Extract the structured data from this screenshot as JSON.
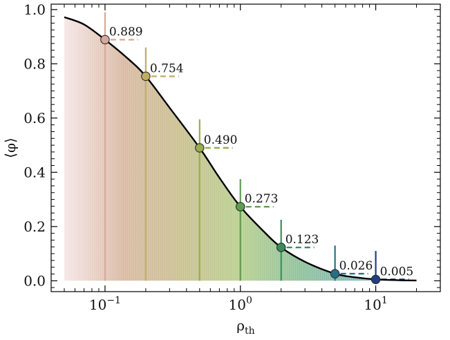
{
  "chart_data": {
    "type": "line",
    "title": "",
    "xlabel": "ρ",
    "xlabel_sub": "th",
    "ylabel": "⟨φ⟩",
    "xscale": "log",
    "xlim": [
      0.04,
      30
    ],
    "ylim": [
      -0.04,
      1.02
    ],
    "grid": false,
    "curve": {
      "x": [
        0.05,
        0.07,
        0.1,
        0.15,
        0.2,
        0.3,
        0.5,
        0.7,
        1.0,
        1.5,
        2.0,
        3.0,
        5.0,
        7.0,
        10.0,
        15.0,
        20.0
      ],
      "y": [
        0.972,
        0.945,
        0.889,
        0.816,
        0.754,
        0.638,
        0.49,
        0.38,
        0.273,
        0.18,
        0.123,
        0.07,
        0.026,
        0.013,
        0.005,
        0.002,
        0.001
      ]
    },
    "points": [
      {
        "x": 0.1,
        "y": 0.889,
        "label": "0.889",
        "color": "#d6a99a"
      },
      {
        "x": 0.2,
        "y": 0.754,
        "label": "0.754",
        "color": "#bfae62"
      },
      {
        "x": 0.5,
        "y": 0.49,
        "label": "0.490",
        "color": "#98ad4d"
      },
      {
        "x": 1.0,
        "y": 0.273,
        "label": "0.273",
        "color": "#5f9c52"
      },
      {
        "x": 2.0,
        "y": 0.123,
        "label": "0.123",
        "color": "#3b8a5c"
      },
      {
        "x": 5.0,
        "y": 0.026,
        "label": "0.026",
        "color": "#2a6e84"
      },
      {
        "x": 10.0,
        "y": 0.005,
        "label": "0.005",
        "color": "#1f3f82"
      }
    ],
    "stem_tops": [
      0.99,
      0.86,
      0.595,
      0.375,
      0.225,
      0.13,
      0.11
    ],
    "x_ticks": [
      {
        "value": 0.1,
        "base": "10",
        "exp": "−1"
      },
      {
        "value": 1,
        "base": "10",
        "exp": "0"
      },
      {
        "value": 10,
        "base": "10",
        "exp": "1"
      }
    ],
    "y_ticks": [
      {
        "value": 0.0,
        "label": "0.0"
      },
      {
        "value": 0.2,
        "label": "0.2"
      },
      {
        "value": 0.4,
        "label": "0.4"
      },
      {
        "value": 0.6,
        "label": "0.6"
      },
      {
        "value": 0.8,
        "label": "0.8"
      },
      {
        "value": 1.0,
        "label": "1.0"
      }
    ],
    "fill_colors": [
      "#f6e6e6",
      "#d8b9a2",
      "#c9c08f",
      "#b8cf8f",
      "#8fc19a",
      "#7fb7b6",
      "#a9bfe0"
    ]
  }
}
